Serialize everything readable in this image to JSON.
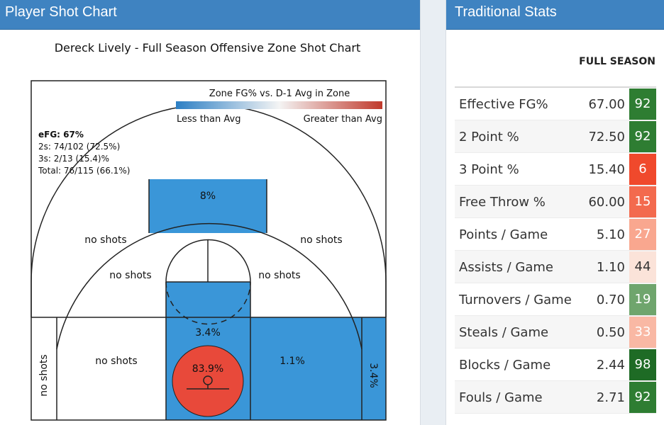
{
  "left_panel": {
    "header": "Player Shot Chart",
    "chart_title": "Dereck Lively - Full Season Offensive Zone Shot Chart",
    "legend": {
      "title": "Zone FG% vs. D-1 Avg in Zone",
      "low_label": "Less than Avg",
      "high_label": "Greater than Avg"
    },
    "summary": {
      "efg": "eFG: 67%",
      "twos": "2s: 74/102 (72.5%)",
      "threes": "3s: 2/13 (15.4)%",
      "total": "Total: 76/115 (66.1%)"
    },
    "zones": {
      "top_three": "8%",
      "left_wing_three": "no shots",
      "right_wing_three": "no shots",
      "left_elbow": "no shots",
      "right_elbow": "no shots",
      "left_baseline_mid": "no shots",
      "left_corner_three": "no shots",
      "paint": "3.4%",
      "restricted_area": "83.9%",
      "right_baseline_mid": "1.1%",
      "right_corner_three": "3.4%"
    },
    "colors": {
      "blue": "#3a96d8",
      "red": "#e8493a"
    }
  },
  "right_panel": {
    "header": "Traditional Stats",
    "column_header": "FULL SEASON",
    "rows": [
      {
        "label": "Effective FG%",
        "value": "67.00",
        "pct": "92",
        "color": "#2e7d32"
      },
      {
        "label": "2 Point %",
        "value": "72.50",
        "pct": "92",
        "color": "#2e7d32"
      },
      {
        "label": "3 Point %",
        "value": "15.40",
        "pct": "6",
        "color": "#f0492c"
      },
      {
        "label": "Free Throw %",
        "value": "60.00",
        "pct": "15",
        "color": "#f36a4e"
      },
      {
        "label": "Points / Game",
        "value": "5.10",
        "pct": "27",
        "color": "#f9a78f"
      },
      {
        "label": "Assists / Game",
        "value": "1.10",
        "pct": "44",
        "color": "#fbe3d9"
      },
      {
        "label": "Turnovers / Game",
        "value": "0.70",
        "pct": "19",
        "color": "#6fa56d"
      },
      {
        "label": "Steals / Game",
        "value": "0.50",
        "pct": "33",
        "color": "#f9b8a4"
      },
      {
        "label": "Blocks / Game",
        "value": "2.44",
        "pct": "98",
        "color": "#1e6b25"
      },
      {
        "label": "Fouls / Game",
        "value": "2.71",
        "pct": "92",
        "color": "#2e7d32"
      }
    ]
  }
}
